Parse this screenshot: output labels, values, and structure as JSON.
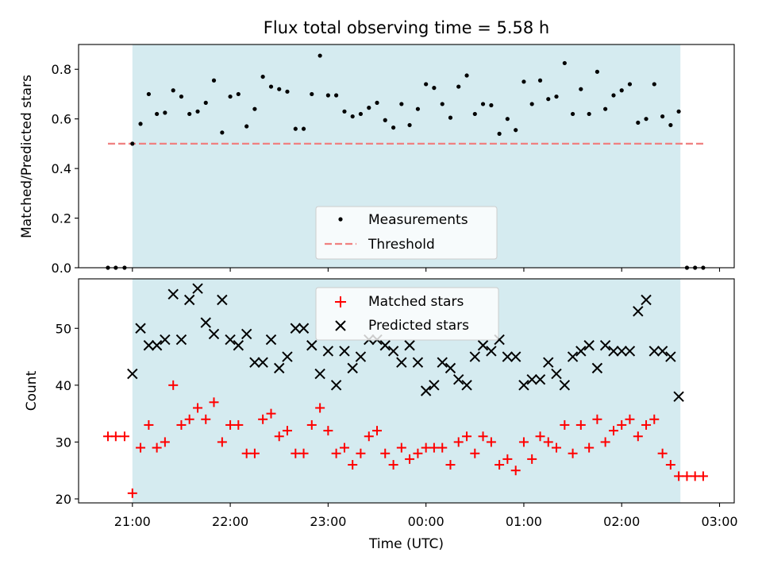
{
  "chart_data": [
    {
      "type": "scatter",
      "title": "Flux total observing time = 5.58 h",
      "ylabel": "Matched/Predicted stars",
      "xlabel": "",
      "ylim": [
        0,
        0.9
      ],
      "yticks": [
        0.0,
        0.2,
        0.4,
        0.6,
        0.8
      ],
      "ytick_labels": [
        "0.0",
        "0.2",
        "0.4",
        "0.6",
        "0.8"
      ],
      "shaded_span_hours": [
        21.0,
        26.6
      ],
      "shaded_color": "#d5ebf0",
      "threshold": {
        "name": "Threshold",
        "y": 0.5,
        "x_range_hours": [
          20.75,
          26.85
        ],
        "color": "#f08080"
      },
      "legend_position": "lower center",
      "series": [
        {
          "name": "Measurements",
          "color": "#000000",
          "x_hours": [
            20.75,
            20.83,
            20.92,
            21.0,
            21.083,
            21.167,
            21.25,
            21.333,
            21.417,
            21.5,
            21.583,
            21.667,
            21.75,
            21.833,
            21.917,
            22.0,
            22.083,
            22.167,
            22.25,
            22.333,
            22.417,
            22.5,
            22.583,
            22.667,
            22.75,
            22.833,
            22.917,
            23.0,
            23.083,
            23.167,
            23.25,
            23.333,
            23.417,
            23.5,
            23.583,
            23.667,
            23.75,
            23.833,
            23.917,
            24.0,
            24.083,
            24.167,
            24.25,
            24.333,
            24.417,
            24.5,
            24.583,
            24.667,
            24.75,
            24.833,
            24.917,
            25.0,
            25.083,
            25.167,
            25.25,
            25.333,
            25.417,
            25.5,
            25.583,
            25.667,
            25.75,
            25.833,
            25.917,
            26.0,
            26.083,
            26.167,
            26.25,
            26.333,
            26.417,
            26.5,
            26.583,
            26.667,
            26.75,
            26.833
          ],
          "y": [
            0.0,
            0.0,
            0.0,
            0.5,
            0.58,
            0.7,
            0.62,
            0.625,
            0.715,
            0.69,
            0.62,
            0.63,
            0.665,
            0.755,
            0.545,
            0.69,
            0.7,
            0.57,
            0.64,
            0.77,
            0.73,
            0.72,
            0.71,
            0.56,
            0.56,
            0.7,
            0.855,
            0.695,
            0.695,
            0.63,
            0.61,
            0.62,
            0.645,
            0.665,
            0.595,
            0.565,
            0.66,
            0.575,
            0.64,
            0.74,
            0.725,
            0.66,
            0.605,
            0.73,
            0.775,
            0.62,
            0.66,
            0.655,
            0.54,
            0.6,
            0.555,
            0.75,
            0.66,
            0.755,
            0.68,
            0.69,
            0.825,
            0.62,
            0.72,
            0.62,
            0.79,
            0.64,
            0.695,
            0.715,
            0.74,
            0.585,
            0.6,
            0.74,
            0.61,
            0.575,
            0.63,
            0.0,
            0.0,
            0.0
          ]
        }
      ]
    },
    {
      "type": "scatter",
      "title": "",
      "ylabel": "Count",
      "xlabel": "Time (UTC)",
      "ylim": [
        19.3,
        58.7
      ],
      "yticks": [
        20,
        30,
        40,
        50
      ],
      "ytick_labels": [
        "20",
        "30",
        "40",
        "50"
      ],
      "xlim_hours": [
        20.45,
        27.15
      ],
      "xticks_hours": [
        21,
        22,
        23,
        24,
        25,
        26,
        27
      ],
      "xtick_labels": [
        "21:00",
        "22:00",
        "23:00",
        "00:00",
        "01:00",
        "02:00",
        "03:00"
      ],
      "shaded_span_hours": [
        21.0,
        26.6
      ],
      "legend_position": "upper center",
      "series": [
        {
          "name": "Matched stars",
          "color": "#ff0000",
          "marker": "plus",
          "x_hours": [
            20.75,
            20.83,
            20.92,
            21.0,
            21.083,
            21.167,
            21.25,
            21.333,
            21.417,
            21.5,
            21.583,
            21.667,
            21.75,
            21.833,
            21.917,
            22.0,
            22.083,
            22.167,
            22.25,
            22.333,
            22.417,
            22.5,
            22.583,
            22.667,
            22.75,
            22.833,
            22.917,
            23.0,
            23.083,
            23.167,
            23.25,
            23.333,
            23.417,
            23.5,
            23.583,
            23.667,
            23.75,
            23.833,
            23.917,
            24.0,
            24.083,
            24.167,
            24.25,
            24.333,
            24.417,
            24.5,
            24.583,
            24.667,
            24.75,
            24.833,
            24.917,
            25.0,
            25.083,
            25.167,
            25.25,
            25.333,
            25.417,
            25.5,
            25.583,
            25.667,
            25.75,
            25.833,
            25.917,
            26.0,
            26.083,
            26.167,
            26.25,
            26.333,
            26.417,
            26.5,
            26.583,
            26.667,
            26.75,
            26.833
          ],
          "y": [
            31,
            31,
            31,
            21,
            29,
            33,
            29,
            30,
            40,
            33,
            34,
            36,
            34,
            37,
            30,
            33,
            33,
            28,
            28,
            34,
            35,
            31,
            32,
            28,
            28,
            33,
            36,
            32,
            28,
            29,
            26,
            28,
            31,
            32,
            28,
            26,
            29,
            27,
            28,
            29,
            29,
            29,
            26,
            30,
            31,
            28,
            31,
            30,
            26,
            27,
            25,
            30,
            27,
            31,
            30,
            29,
            33,
            28,
            33,
            29,
            34,
            30,
            32,
            33,
            34,
            31,
            33,
            34,
            28,
            26,
            24,
            24,
            24,
            24
          ]
        },
        {
          "name": "Predicted stars",
          "color": "#000000",
          "marker": "x",
          "x_hours": [
            21.0,
            21.083,
            21.167,
            21.25,
            21.333,
            21.417,
            21.5,
            21.583,
            21.667,
            21.75,
            21.833,
            21.917,
            22.0,
            22.083,
            22.167,
            22.25,
            22.333,
            22.417,
            22.5,
            22.583,
            22.667,
            22.75,
            22.833,
            22.917,
            23.0,
            23.083,
            23.167,
            23.25,
            23.333,
            23.417,
            23.5,
            23.583,
            23.667,
            23.75,
            23.833,
            23.917,
            24.0,
            24.083,
            24.167,
            24.25,
            24.333,
            24.417,
            24.5,
            24.583,
            24.667,
            24.75,
            24.833,
            24.917,
            25.0,
            25.083,
            25.167,
            25.25,
            25.333,
            25.417,
            25.5,
            25.583,
            25.667,
            25.75,
            25.833,
            25.917,
            26.0,
            26.083,
            26.167,
            26.25,
            26.333,
            26.417,
            26.5,
            26.583
          ],
          "y": [
            42,
            50,
            47,
            47,
            48,
            56,
            48,
            55,
            57,
            51,
            49,
            55,
            48,
            47,
            49,
            44,
            44,
            48,
            43,
            45,
            50,
            50,
            47,
            42,
            46,
            40,
            46,
            43,
            45,
            48,
            48,
            47,
            46,
            44,
            47,
            44,
            39,
            40,
            44,
            43,
            41,
            40,
            45,
            47,
            46,
            48,
            45,
            45,
            40,
            41,
            41,
            44,
            42,
            40,
            45,
            46,
            47,
            43,
            47,
            46,
            46,
            46,
            53,
            55,
            46,
            46,
            45,
            38
          ]
        }
      ]
    }
  ]
}
